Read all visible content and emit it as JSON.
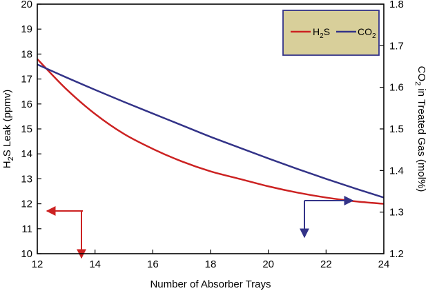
{
  "chart_data": {
    "type": "line",
    "xlabel": "Number of Absorber Trays",
    "ylabel_left": {
      "pre": "H",
      "sub": "2",
      "post": "S Leak (ppmv)"
    },
    "ylabel_right": {
      "pre": "CO",
      "sub": "2",
      "post": " in Treated Gas (mol%)"
    },
    "xlim": [
      12,
      24
    ],
    "ylim_left": [
      10,
      20
    ],
    "ylim_right": [
      1.2,
      1.8
    ],
    "x_ticks": [
      "12",
      "14",
      "16",
      "18",
      "20",
      "22",
      "24"
    ],
    "y_left_ticks": [
      "10",
      "11",
      "12",
      "13",
      "14",
      "15",
      "16",
      "17",
      "18",
      "19",
      "20"
    ],
    "y_right_ticks": [
      "1.2",
      "1.3",
      "1.4",
      "1.5",
      "1.6",
      "1.7",
      "1.8"
    ],
    "grid": false,
    "legend_position": "top-right",
    "series": [
      {
        "name": {
          "pre": "H",
          "sub": "2",
          "post": "S"
        },
        "axis": "left",
        "color": "#cc2222",
        "x": [
          12,
          13,
          14,
          15,
          16,
          17,
          18,
          19,
          20,
          21,
          22,
          23,
          24
        ],
        "y": [
          17.8,
          16.6,
          15.6,
          14.8,
          14.2,
          13.7,
          13.3,
          13.0,
          12.7,
          12.45,
          12.25,
          12.1,
          12.0
        ]
      },
      {
        "name": {
          "pre": "CO",
          "sub": "2",
          "post": ""
        },
        "axis": "right",
        "color": "#333388",
        "x": [
          12,
          13,
          14,
          15,
          16,
          17,
          18,
          19,
          20,
          21,
          22,
          23,
          24
        ],
        "y": [
          1.655,
          1.624,
          1.594,
          1.565,
          1.537,
          1.509,
          1.481,
          1.455,
          1.429,
          1.404,
          1.38,
          1.357,
          1.335
        ]
      }
    ]
  }
}
